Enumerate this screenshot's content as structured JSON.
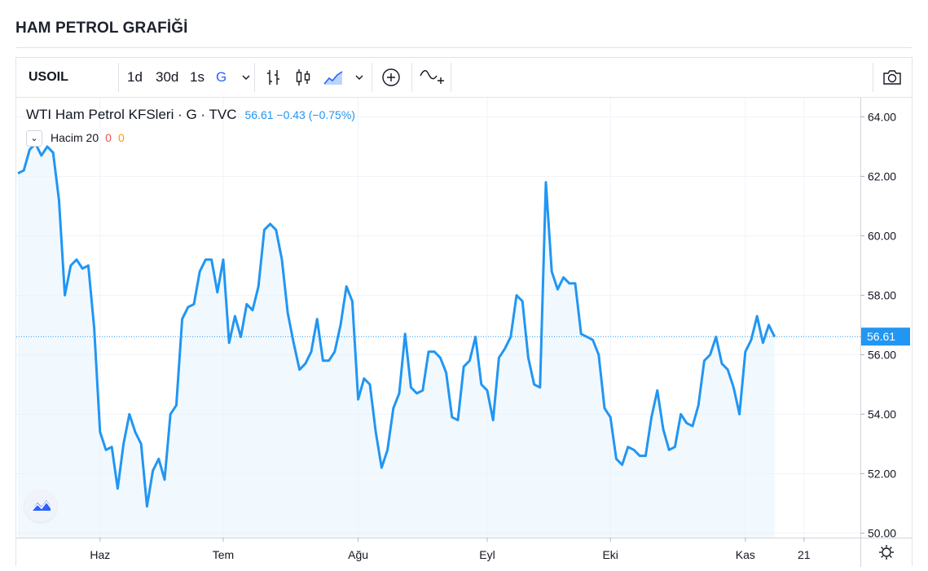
{
  "page": {
    "title": "HAM PETROL GRAFİĞİ"
  },
  "toolbar": {
    "symbol": "USOIL",
    "intervals": [
      "1d",
      "30d",
      "1s",
      "G"
    ],
    "active_interval": "G",
    "icons": [
      "chevron-down-icon",
      "bar-style-icon",
      "candle-style-icon",
      "area-style-icon",
      "chevron-down-icon",
      "add-compare-icon",
      "indicators-icon",
      "camera-icon"
    ]
  },
  "legend": {
    "name": "WTI Ham Petrol KFSleri · G · TVC",
    "values": "56.61  −0.43 (−0.75%)",
    "volume_label": "Hacim 20",
    "volume_v1": "0",
    "volume_v2": "0"
  },
  "colors": {
    "line": "#2196f3",
    "fill": "#e3f2fd",
    "price_tag": "#2196f3",
    "grid": "#f0f3fa"
  },
  "chart_data": {
    "type": "area",
    "y_ticks": [
      "64.00",
      "62.00",
      "60.00",
      "58.00",
      "56.00",
      "54.00",
      "52.00",
      "50.00"
    ],
    "ylim": [
      50,
      64
    ],
    "last_price": "56.61",
    "x_ticks": [
      {
        "label": "Haz",
        "index": 14
      },
      {
        "label": "Tem",
        "index": 35
      },
      {
        "label": "Ağu",
        "index": 58
      },
      {
        "label": "Eyl",
        "index": 80
      },
      {
        "label": "Eki",
        "index": 101
      },
      {
        "label": "Kas",
        "index": 124
      },
      {
        "label": "21",
        "index": 134
      }
    ],
    "values": [
      62.1,
      62.2,
      62.9,
      63.1,
      62.7,
      63.0,
      62.8,
      61.2,
      58.0,
      59.0,
      59.2,
      58.9,
      59.0,
      56.9,
      53.4,
      52.8,
      52.9,
      51.5,
      53.0,
      54.0,
      53.4,
      53.0,
      50.9,
      52.1,
      52.5,
      51.8,
      54.0,
      54.3,
      57.2,
      57.6,
      57.7,
      58.8,
      59.2,
      59.2,
      58.1,
      59.2,
      56.4,
      57.3,
      56.6,
      57.7,
      57.5,
      58.3,
      60.2,
      60.4,
      60.2,
      59.2,
      57.4,
      56.4,
      55.5,
      55.7,
      56.1,
      57.2,
      55.8,
      55.8,
      56.1,
      57.0,
      58.3,
      57.8,
      54.5,
      55.2,
      55.0,
      53.4,
      52.2,
      52.8,
      54.2,
      54.7,
      56.7,
      54.9,
      54.7,
      54.8,
      56.1,
      56.1,
      55.9,
      55.4,
      53.9,
      53.8,
      55.6,
      55.8,
      56.6,
      55.0,
      54.8,
      53.8,
      55.9,
      56.2,
      56.6,
      58.0,
      57.8,
      55.9,
      55.0,
      54.9,
      61.8,
      58.8,
      58.2,
      58.6,
      58.4,
      58.4,
      56.7,
      56.6,
      56.5,
      56.0,
      54.2,
      53.9,
      52.5,
      52.3,
      52.9,
      52.8,
      52.6,
      52.6,
      53.9,
      54.8,
      53.5,
      52.8,
      52.9,
      54.0,
      53.7,
      53.6,
      54.3,
      55.8,
      56.0,
      56.6,
      55.7,
      55.5,
      54.9,
      54.0,
      56.1,
      56.5,
      57.3,
      56.4,
      57.0,
      56.6
    ]
  }
}
